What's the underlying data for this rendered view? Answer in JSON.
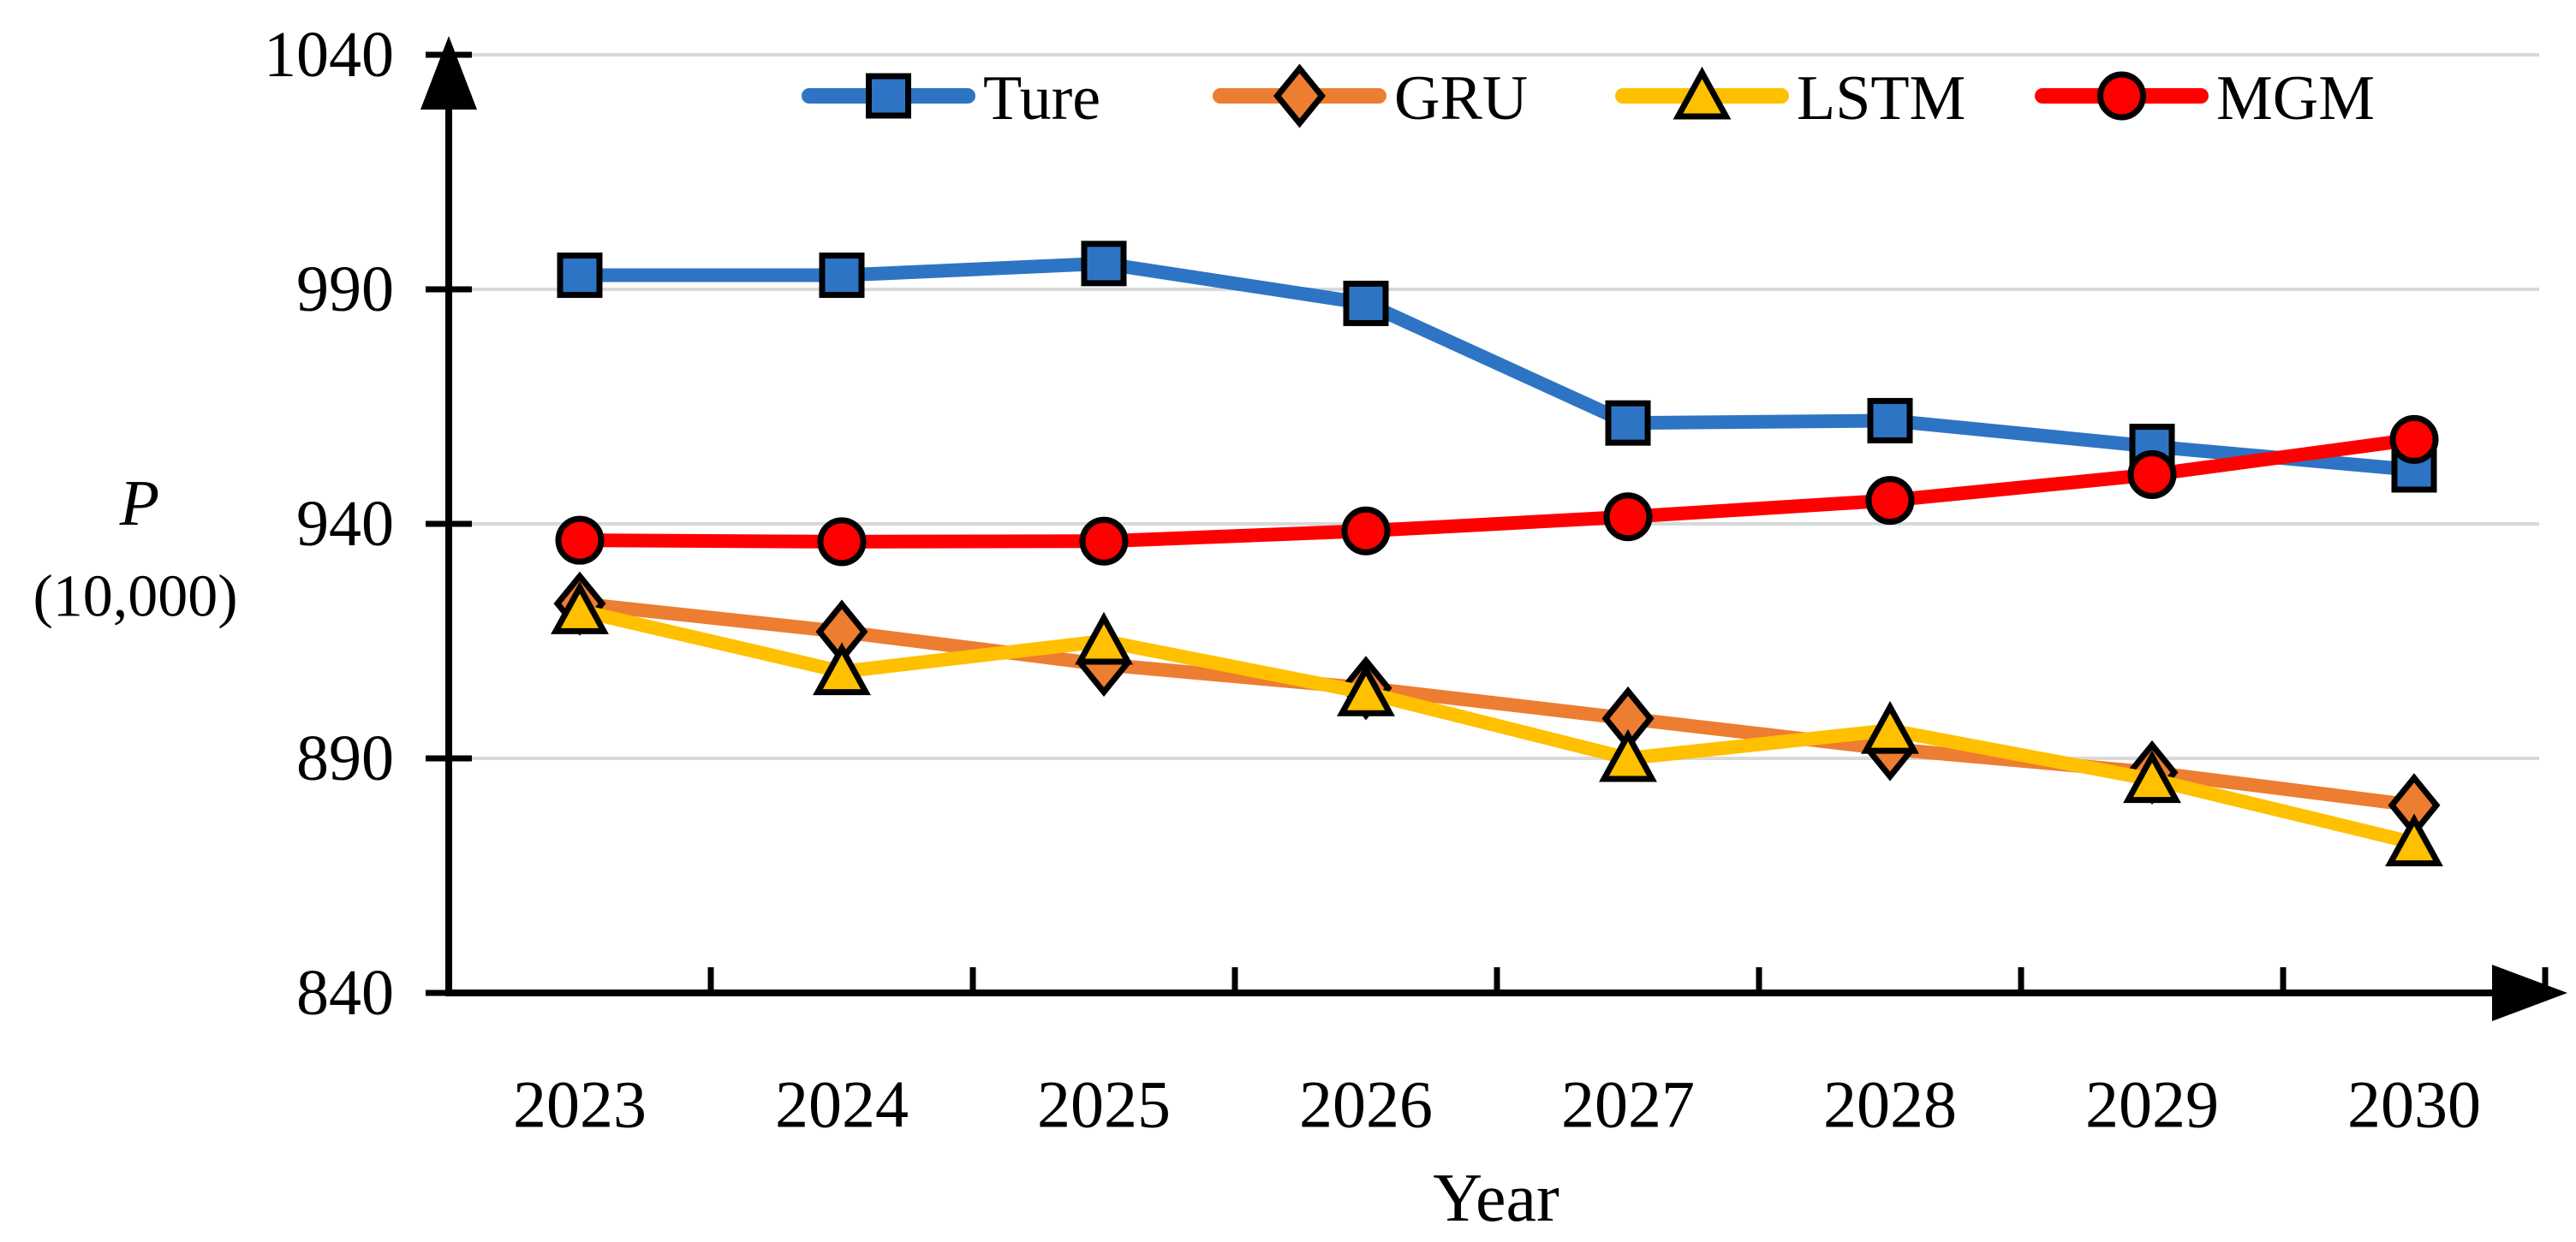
{
  "colors": {
    "axis": "#000000",
    "gridline": "#D9D9D9",
    "marker_outline": "#000000",
    "background": "#FFFFFF"
  },
  "chart_data": {
    "type": "line",
    "title": "",
    "xlabel": "Year",
    "ylabel": [
      "P",
      "(10,000)"
    ],
    "x": [
      2023,
      2024,
      2025,
      2026,
      2027,
      2028,
      2029,
      2030
    ],
    "yticks": [
      1040,
      990,
      940,
      890,
      840
    ],
    "ylim": [
      840,
      1040
    ],
    "grid": true,
    "legend_position": "top",
    "series": [
      {
        "name": "Ture",
        "color": "#2E74C4",
        "marker": "square",
        "values": [
          993,
          993,
          995.5,
          987,
          961.5,
          962,
          956.5,
          951.5
        ]
      },
      {
        "name": "GRU",
        "color": "#ED7D31",
        "marker": "diamond",
        "values": [
          923,
          917,
          910,
          905,
          898.5,
          892,
          887,
          880
        ]
      },
      {
        "name": "LSTM",
        "color": "#FFC000",
        "marker": "triangle",
        "values": [
          921.5,
          908.5,
          915,
          904,
          890,
          896,
          885.5,
          872
        ]
      },
      {
        "name": "MGM",
        "color": "#FF0000",
        "marker": "circle",
        "values": [
          936.5,
          936.2,
          936.3,
          938.5,
          941.5,
          945,
          950.5,
          958
        ]
      }
    ]
  }
}
